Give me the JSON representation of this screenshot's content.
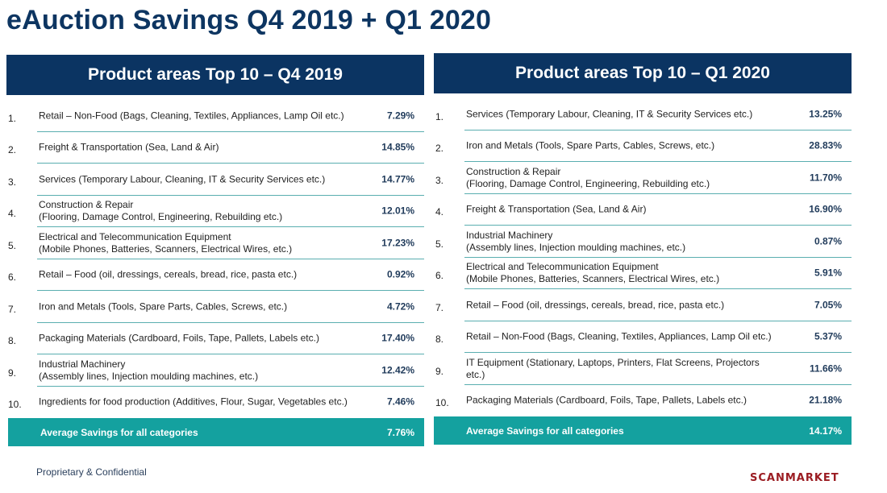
{
  "title": "eAuction Savings Q4 2019 + Q1 2020",
  "panels": [
    {
      "header": "Product areas Top 10 – Q4 2019",
      "rows": [
        {
          "num": "1.",
          "desc": "Retail – Non-Food (Bags, Cleaning, Textiles, Appliances, Lamp Oil etc.)",
          "value": "7.29%"
        },
        {
          "num": "2.",
          "desc": "Freight & Transportation (Sea, Land & Air)",
          "value": "14.85%"
        },
        {
          "num": "3.",
          "desc": "Services (Temporary Labour, Cleaning, IT & Security Services etc.)",
          "value": "14.77%"
        },
        {
          "num": "4.",
          "desc": "Construction & Repair\n(Flooring, Damage Control, Engineering, Rebuilding etc.)",
          "value": "12.01%"
        },
        {
          "num": "5.",
          "desc": "Electrical and Telecommunication Equipment\n(Mobile Phones, Batteries, Scanners, Electrical Wires, etc.)",
          "value": "17.23%"
        },
        {
          "num": "6.",
          "desc": "Retail –  Food (oil, dressings, cereals, bread, rice, pasta etc.)",
          "value": "0.92%"
        },
        {
          "num": "7.",
          "desc": "Iron and Metals (Tools, Spare Parts, Cables, Screws, etc.)",
          "value": "4.72%"
        },
        {
          "num": "8.",
          "desc": "Packaging Materials (Cardboard, Foils, Tape, Pallets, Labels etc.)",
          "value": "17.40%"
        },
        {
          "num": "9.",
          "desc": "Industrial Machinery\n(Assembly lines, Injection moulding machines, etc.)",
          "value": "12.42%"
        },
        {
          "num": "10.",
          "desc": "Ingredients for food production (Additives, Flour, Sugar, Vegetables etc.)",
          "value": "7.46%"
        }
      ],
      "average": {
        "label": "Average Savings for all categories",
        "value": "7.76%"
      }
    },
    {
      "header": "Product areas Top 10 – Q1 2020",
      "rows": [
        {
          "num": "1.",
          "desc": "Services (Temporary Labour, Cleaning, IT & Security Services etc.)",
          "value": "13.25%"
        },
        {
          "num": "2.",
          "desc": "Iron and Metals (Tools, Spare Parts, Cables, Screws, etc.)",
          "value": "28.83%"
        },
        {
          "num": "3.",
          "desc": "Construction & Repair\n(Flooring, Damage Control, Engineering, Rebuilding etc.)",
          "value": "11.70%"
        },
        {
          "num": "4.",
          "desc": "Freight & Transportation (Sea, Land & Air)",
          "value": "16.90%"
        },
        {
          "num": "5.",
          "desc": "Industrial Machinery\n(Assembly lines, Injection moulding machines, etc.)",
          "value": "0.87%"
        },
        {
          "num": "6.",
          "desc": "Electrical and Telecommunication Equipment\n(Mobile Phones, Batteries, Scanners, Electrical Wires, etc.)",
          "value": "5.91%"
        },
        {
          "num": "7.",
          "desc": "Retail –  Food (oil, dressings, cereals, bread, rice, pasta etc.)",
          "value": "7.05%"
        },
        {
          "num": "8.",
          "desc": "Retail – Non-Food (Bags, Cleaning, Textiles, Appliances, Lamp Oil etc.)",
          "value": "5.37%"
        },
        {
          "num": "9.",
          "desc": "IT Equipment (Stationary, Laptops, Printers, Flat Screens, Projectors etc.)",
          "value": "11.66%"
        },
        {
          "num": "10.",
          "desc": "Packaging Materials (Cardboard, Foils, Tape, Pallets, Labels etc.)",
          "value": "21.18%"
        }
      ],
      "average": {
        "label": "Average Savings for all categories",
        "value": "14.17%"
      }
    }
  ],
  "footer": "Proprietary & Confidential",
  "logo": "SCANMARKET",
  "colors": {
    "title": "#0d3561",
    "header_bg": "#0b3462",
    "average_bg": "#14a19f",
    "divider": "#5aaeb0",
    "logo": "#9b1c22"
  }
}
